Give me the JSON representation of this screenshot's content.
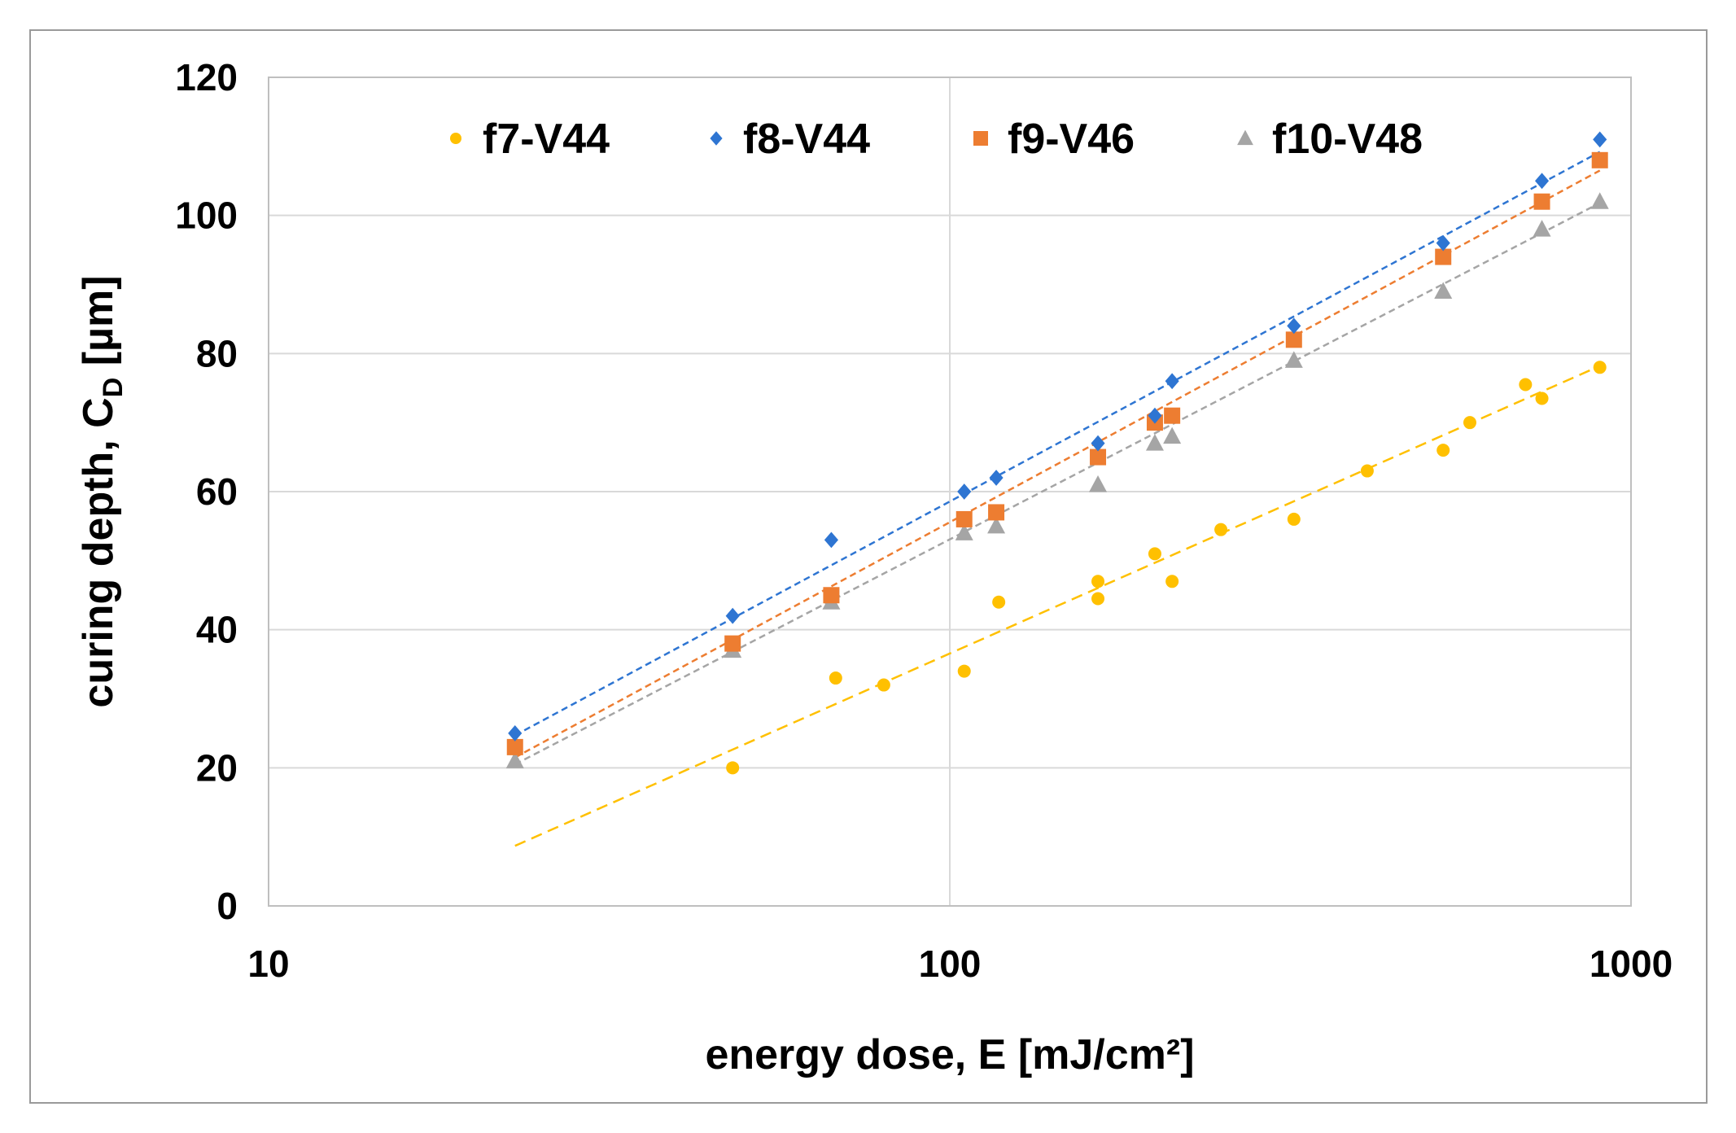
{
  "chart_data": {
    "type": "scatter",
    "x_scale": "log",
    "xlabel": "energy dose, E [mJ/cm²]",
    "ylabel_main": "curing depth, C",
    "ylabel_sub": "D",
    "ylabel_unit": " [µm]",
    "xlim": [
      10,
      1000
    ],
    "ylim": [
      0,
      120
    ],
    "x_ticks": [
      {
        "value": 10,
        "label": "10"
      },
      {
        "value": 100,
        "label": "100"
      },
      {
        "value": 1000,
        "label": "1000"
      }
    ],
    "y_ticks": [
      {
        "value": 0,
        "label": "0"
      },
      {
        "value": 20,
        "label": "20"
      },
      {
        "value": 40,
        "label": "40"
      },
      {
        "value": 60,
        "label": "60"
      },
      {
        "value": 80,
        "label": "80"
      },
      {
        "value": 100,
        "label": "100"
      },
      {
        "value": 120,
        "label": "120"
      }
    ],
    "grid": true,
    "legend_position": "top",
    "series": [
      {
        "name": "f7-V44",
        "key": "f7",
        "marker": "circle",
        "color": "#FFC000",
        "points": [
          [
            48,
            20
          ],
          [
            68,
            33
          ],
          [
            80,
            32
          ],
          [
            105,
            34
          ],
          [
            118,
            44
          ],
          [
            165,
            47
          ],
          [
            165,
            44.5
          ],
          [
            200,
            51
          ],
          [
            212,
            47
          ],
          [
            250,
            54.5
          ],
          [
            320,
            56
          ],
          [
            410,
            63
          ],
          [
            530,
            66
          ],
          [
            580,
            70
          ],
          [
            700,
            75.5
          ],
          [
            740,
            73.5
          ],
          [
            900,
            78
          ]
        ],
        "trend": [
          [
            23,
            8.7
          ],
          [
            900,
            78.2
          ]
        ]
      },
      {
        "name": "f8-V44",
        "key": "f8",
        "marker": "diamond",
        "color": "#2E75D2",
        "points": [
          [
            23,
            25
          ],
          [
            48,
            42
          ],
          [
            67,
            53
          ],
          [
            105,
            60
          ],
          [
            117,
            62
          ],
          [
            165,
            67
          ],
          [
            200,
            71
          ],
          [
            212,
            76
          ],
          [
            320,
            84
          ],
          [
            530,
            96
          ],
          [
            740,
            105
          ],
          [
            900,
            111
          ]
        ],
        "trend": [
          [
            23,
            24.7
          ],
          [
            900,
            109.2
          ]
        ]
      },
      {
        "name": "f9-V46",
        "key": "f9",
        "marker": "square",
        "color": "#ED7D31",
        "points": [
          [
            23,
            23
          ],
          [
            48,
            38
          ],
          [
            67,
            45
          ],
          [
            105,
            56
          ],
          [
            117,
            57
          ],
          [
            165,
            65
          ],
          [
            200,
            70
          ],
          [
            212,
            71
          ],
          [
            320,
            82
          ],
          [
            530,
            94
          ],
          [
            740,
            102
          ],
          [
            900,
            108
          ]
        ],
        "trend": [
          [
            23,
            21.5
          ],
          [
            900,
            106.5
          ]
        ]
      },
      {
        "name": "f10-V48",
        "key": "f10",
        "marker": "triangle",
        "color": "#A5A5A5",
        "points": [
          [
            23,
            21
          ],
          [
            48,
            37
          ],
          [
            67,
            44
          ],
          [
            105,
            54
          ],
          [
            117,
            55
          ],
          [
            165,
            61
          ],
          [
            200,
            67
          ],
          [
            212,
            68
          ],
          [
            320,
            79
          ],
          [
            530,
            89
          ],
          [
            740,
            98
          ],
          [
            900,
            102
          ]
        ],
        "trend": [
          [
            23,
            20.5
          ],
          [
            900,
            101.8
          ]
        ]
      }
    ]
  }
}
